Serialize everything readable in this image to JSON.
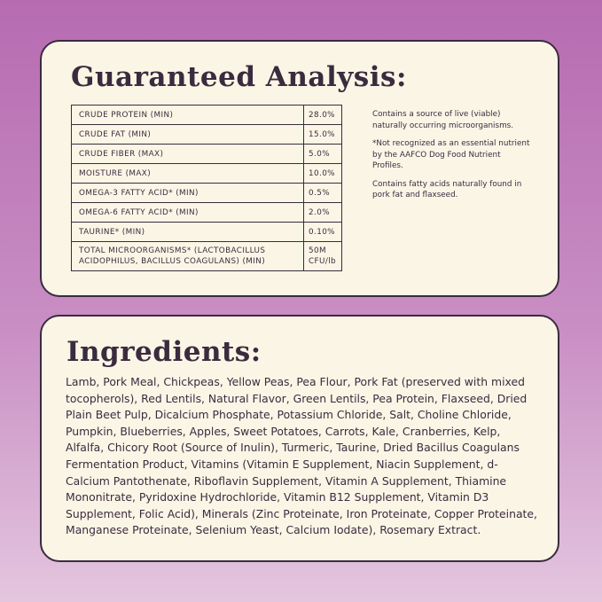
{
  "analysis": {
    "title": "Guaranteed Analysis:",
    "rows": [
      [
        "CRUDE PROTEIN (MIN)",
        "28.0%"
      ],
      [
        "CRUDE FAT (MIN)",
        "15.0%"
      ],
      [
        "CRUDE FIBER (MAX)",
        "5.0%"
      ],
      [
        "MOISTURE (MAX)",
        "10.0%"
      ],
      [
        "OMEGA-3 FATTY ACID* (MIN)",
        "0.5%"
      ],
      [
        "OMEGA-6 FATTY ACID* (MIN)",
        "2.0%"
      ],
      [
        "TAURINE* (MIN)",
        "0.10%"
      ],
      [
        "TOTAL MICROORGANISMS* (LACTOBACILLUS ACIDOPHILUS, BACILLUS COAGULANS) (MIN)",
        "50M CFU/lb"
      ]
    ],
    "notes": [
      "Contains a source of live (viable) naturally occurring microorganisms.",
      "*Not recognized as an essential nutrient by the AAFCO Dog Food Nutrient Profiles.",
      "Contains fatty acids naturally found in pork fat and flaxseed."
    ]
  },
  "ingredients": {
    "title": "Ingredients:",
    "text": "Lamb, Pork Meal, Chickpeas, Yellow Peas, Pea Flour, Pork Fat (preserved with mixed tocopherols), Red Lentils, Natural Flavor, Green Lentils, Pea Protein, Flaxseed, Dried Plain Beet Pulp, Dicalcium Phosphate, Potassium Chloride, Salt, Choline Chloride, Pumpkin, Blueberries, Apples, Sweet Potatoes, Carrots, Kale, Cranberries, Kelp, Alfalfa, Chicory Root (Source of Inulin), Turmeric, Taurine, Dried Bacillus Coagulans Fermentation Product, Vitamins (Vitamin E Supplement, Niacin Supplement, d-Calcium Pantothenate, Riboflavin Supplement, Vitamin A Supplement, Thiamine Mononitrate, Pyridoxine Hydrochloride, Vitamin B12 Supplement, Vitamin D3 Supplement, Folic Acid), Minerals (Zinc Proteinate, Iron Proteinate, Copper Proteinate, Manganese Proteinate, Selenium Yeast, Calcium Iodate), Rosemary Extract."
  }
}
